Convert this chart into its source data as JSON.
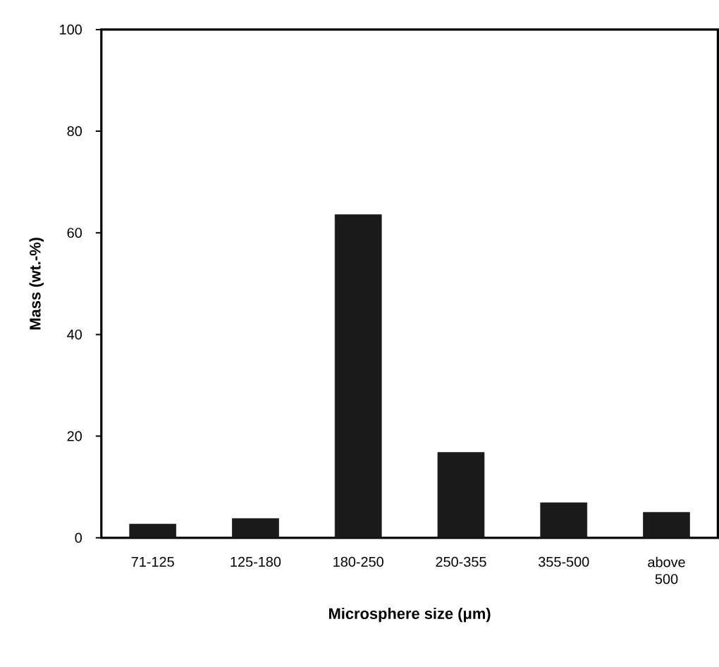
{
  "chart_data": {
    "type": "bar",
    "xlabel": "Microsphere size (μm)",
    "ylabel": "Mass (wt.-%)",
    "categories": [
      "71-125",
      "125-180",
      "180-250",
      "250-355",
      "355-500",
      "above 500"
    ],
    "values": [
      2.7,
      3.8,
      63.6,
      16.8,
      6.9,
      5.0
    ],
    "color": "#1a1a1a",
    "ylim": [
      0,
      100
    ],
    "yticks": [
      0,
      20,
      40,
      60,
      80,
      100
    ],
    "grid": false
  }
}
